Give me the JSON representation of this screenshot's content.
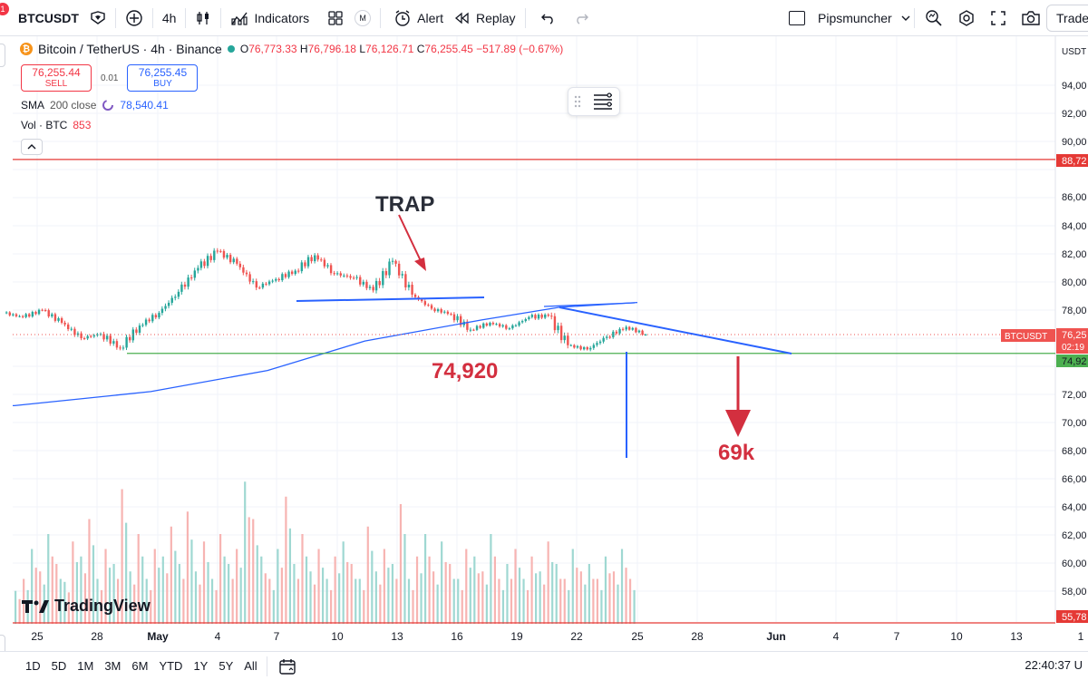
{
  "toolbar": {
    "symbol": "BTCUSDT",
    "notification_count": "1",
    "interval": "4h",
    "indicators_label": "Indicators",
    "templates_badge": "M",
    "alert_label": "Alert",
    "replay_label": "Replay",
    "layout_name": "Pipsmuncher",
    "trade_label": "Trade"
  },
  "legend": {
    "title": "Bitcoin / TetherUS · 4h · Binance",
    "open_key": "O",
    "open": "76,773.33",
    "high_key": "H",
    "high": "76,796.18",
    "low_key": "L",
    "low": "76,126.71",
    "close_key": "C",
    "close": "76,255.45",
    "change": "−517.89 (−0.67%)"
  },
  "orderbox": {
    "sell_price": "76,255.44",
    "sell_label": "SELL",
    "spread": "0.01",
    "buy_price": "76,255.45",
    "buy_label": "BUY"
  },
  "indicators": {
    "sma_name": "SMA",
    "sma_params": "200 close",
    "sma_value": "78,540.41",
    "vol_name": "Vol · BTC",
    "vol_value": "853"
  },
  "price_axis": {
    "currency": "USDT",
    "ticks": [
      "94,00",
      "92,00",
      "90,00",
      "86,00",
      "84,00",
      "82,00",
      "80,00",
      "78,00",
      "72,00",
      "70,00",
      "68,00",
      "66,00",
      "64,00",
      "62,00",
      "60,00",
      "58,00"
    ],
    "label_top_red": "88,72",
    "label_symbol": "BTCUSDT",
    "label_current": "76,25",
    "label_countdown": "02:19",
    "label_green": "74,92",
    "label_bottom_red": "55,78"
  },
  "time_axis": {
    "ticks": [
      "25",
      "28",
      "May",
      "4",
      "7",
      "10",
      "13",
      "16",
      "19",
      "22",
      "25",
      "28",
      "Jun",
      "4",
      "7",
      "10",
      "13",
      "1"
    ]
  },
  "annotations": {
    "trap": "TRAP",
    "support": "74,920",
    "target": "69k"
  },
  "bottom": {
    "ranges": [
      "1D",
      "5D",
      "1M",
      "3M",
      "6M",
      "YTD",
      "1Y",
      "5Y",
      "All"
    ],
    "clock": "22:40:37 U"
  },
  "branding": "TradingView",
  "colors": {
    "up": "#26a69a",
    "down": "#ef5350",
    "sma": "#2962ff",
    "support": "#4caf50",
    "resistance_red": "#e53935",
    "annotation": "#d32f3f"
  },
  "chart_data": {
    "type": "candlestick",
    "price_range": [
      55780,
      95000
    ],
    "sma_200": [
      [
        1,
        71200
      ],
      [
        8,
        72200
      ],
      [
        14,
        73700
      ],
      [
        19,
        75800
      ],
      [
        25,
        77300
      ],
      [
        29,
        78200
      ],
      [
        33,
        78540
      ]
    ],
    "candles_ohlc_daily": [
      [
        1,
        77800,
        78100,
        77000,
        77500
      ],
      [
        2,
        77500,
        78300,
        77200,
        78000
      ],
      [
        3,
        78000,
        78200,
        76800,
        77100
      ],
      [
        4,
        77100,
        77600,
        75800,
        76000
      ],
      [
        5,
        76000,
        76500,
        75100,
        76300
      ],
      [
        6,
        76300,
        76900,
        74900,
        75300
      ],
      [
        7,
        75300,
        77100,
        75000,
        76900
      ],
      [
        8,
        76900,
        78100,
        76500,
        77800
      ],
      [
        9,
        77800,
        79600,
        77400,
        79300
      ],
      [
        10,
        79300,
        81500,
        79000,
        81000
      ],
      [
        11,
        81000,
        82800,
        80600,
        82200
      ],
      [
        12,
        82200,
        82600,
        80900,
        81300
      ],
      [
        13,
        81300,
        81500,
        79200,
        79600
      ],
      [
        14,
        79600,
        80700,
        79200,
        80200
      ],
      [
        15,
        80200,
        81000,
        79500,
        80800
      ],
      [
        16,
        80800,
        82400,
        80400,
        81900
      ],
      [
        17,
        81900,
        82200,
        80300,
        80600
      ],
      [
        18,
        80600,
        81200,
        79400,
        80300
      ],
      [
        19,
        80300,
        81000,
        79100,
        79400
      ],
      [
        20,
        79400,
        81800,
        79100,
        81500
      ],
      [
        21,
        81500,
        81600,
        78900,
        79100
      ],
      [
        22,
        79100,
        79300,
        77900,
        78100
      ],
      [
        23,
        78100,
        78600,
        77300,
        77700
      ],
      [
        24,
        77700,
        78300,
        76300,
        76600
      ],
      [
        25,
        76600,
        77400,
        76400,
        77100
      ],
      [
        26,
        77100,
        77500,
        76300,
        76700
      ],
      [
        27,
        76700,
        77800,
        76500,
        77500
      ],
      [
        28,
        77500,
        78200,
        76900,
        77600
      ],
      [
        29,
        77600,
        78000,
        75200,
        75500
      ],
      [
        30,
        75500,
        75900,
        74900,
        75200
      ],
      [
        31,
        75200,
        76500,
        74800,
        76100
      ],
      [
        32,
        76100,
        77200,
        75700,
        76800
      ],
      [
        33,
        76800,
        77000,
        76100,
        76255
      ]
    ],
    "levels": [
      {
        "name": "red-line",
        "price": 88720
      },
      {
        "name": "support-line",
        "price": 74920
      }
    ],
    "trendlines": [
      {
        "name": "neckline",
        "from": [
          12,
          78800
        ],
        "to": [
          21,
          79000
        ]
      },
      {
        "name": "descending-resistance",
        "from": [
          28,
          78200
        ],
        "to": [
          42,
          74920
        ]
      }
    ],
    "volume_relative": [
      0.22,
      0.3,
      0.5,
      0.35,
      0.6,
      0.4,
      0.28,
      0.55,
      0.45,
      0.7,
      0.3,
      0.5,
      0.4,
      0.9,
      0.35,
      0.6,
      0.3,
      0.5,
      0.45,
      0.65,
      0.4,
      0.75,
      0.35,
      0.55,
      0.3,
      0.6,
      0.4,
      0.5,
      0.95,
      0.7,
      0.45,
      0.3,
      0.5,
      0.85,
      0.4,
      0.6,
      0.35,
      0.5,
      0.3,
      0.45,
      0.55,
      0.4,
      0.3,
      0.65,
      0.35,
      0.5,
      0.4,
      0.8,
      0.3,
      0.45,
      0.6,
      0.35,
      0.55,
      0.4,
      0.3,
      0.5,
      0.45,
      0.35,
      0.6,
      0.3,
      0.4,
      0.5,
      0.3,
      0.45,
      0.35,
      0.55,
      0.4,
      0.3,
      0.5,
      0.35,
      0.4,
      0.3,
      0.45,
      0.35,
      0.5,
      0.3
    ]
  }
}
